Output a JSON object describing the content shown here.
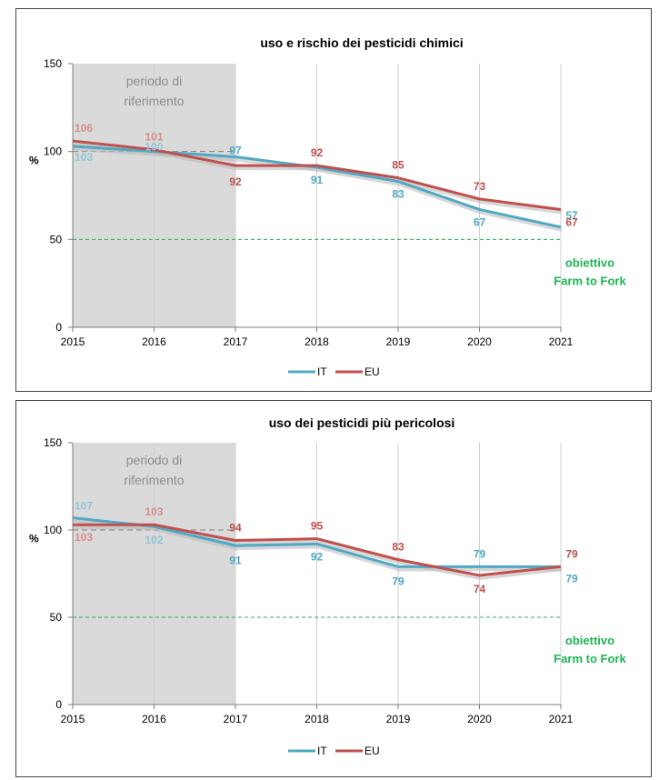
{
  "colors": {
    "IT": "#4fa9c4",
    "EU": "#c0504d",
    "goal": "#1fb354",
    "shade": "#dadada"
  },
  "chart_data": [
    {
      "type": "line",
      "title": "uso e rischio dei pesticidi chimici",
      "ylabel": "%",
      "ylim": [
        0,
        150
      ],
      "yticks": [
        "0",
        "50",
        "100",
        "150"
      ],
      "x": [
        "2015",
        "2016",
        "2017",
        "2018",
        "2019",
        "2020",
        "2021"
      ],
      "series": [
        {
          "name": "IT",
          "values": [
            103,
            100,
            97,
            91,
            83,
            67,
            57
          ],
          "labels": [
            "103",
            "100",
            "97",
            "91",
            "83",
            "67",
            "57"
          ]
        },
        {
          "name": "EU",
          "values": [
            106,
            101,
            92,
            92,
            85,
            73,
            67
          ],
          "labels": [
            "106",
            "101",
            "92",
            "92",
            "85",
            "73",
            "67"
          ]
        }
      ],
      "reference_line": 100,
      "target": {
        "value": 50,
        "label_line1": "obiettivo",
        "label_line2": "Farm to Fork"
      },
      "reference_period": {
        "from": "2015",
        "to": "2017",
        "label_line1": "periodo di",
        "label_line2": "riferimento"
      },
      "legend": "bottom"
    },
    {
      "type": "line",
      "title": "uso dei pesticidi più pericolosi",
      "ylabel": "%",
      "ylim": [
        0,
        150
      ],
      "yticks": [
        "0",
        "50",
        "100",
        "150"
      ],
      "x": [
        "2015",
        "2016",
        "2017",
        "2018",
        "2019",
        "2020",
        "2021"
      ],
      "series": [
        {
          "name": "IT",
          "values": [
            107,
            102,
            91,
            92,
            79,
            79,
            79
          ],
          "labels": [
            "107",
            "102",
            "91",
            "92",
            "79",
            "79",
            "79"
          ]
        },
        {
          "name": "EU",
          "values": [
            103,
            103,
            94,
            95,
            83,
            74,
            79
          ],
          "labels": [
            "103",
            "103",
            "94",
            "95",
            "83",
            "74",
            "79"
          ]
        }
      ],
      "reference_line": 100,
      "target": {
        "value": 50,
        "label_line1": "obiettivo",
        "label_line2": "Farm to Fork"
      },
      "reference_period": {
        "from": "2015",
        "to": "2017",
        "label_line1": "periodo di",
        "label_line2": "riferimento"
      },
      "legend": "bottom"
    }
  ]
}
